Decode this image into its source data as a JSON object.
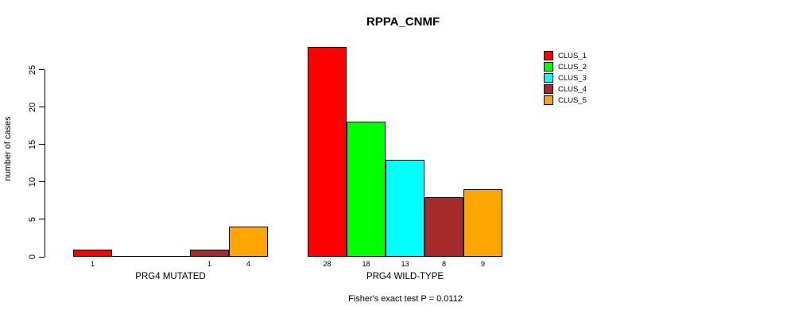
{
  "chart_data": {
    "type": "bar",
    "title": "RPPA_CNMF",
    "xlabel": "",
    "ylabel": "number of cases",
    "ylim": [
      0,
      28
    ],
    "yticks": [
      0,
      5,
      10,
      15,
      20,
      25
    ],
    "grid": false,
    "legend_position": "top-right",
    "bar_value_labels": true,
    "categories": [
      "PRG4 MUTATED",
      "PRG4 WILD-TYPE"
    ],
    "series": [
      {
        "name": "CLUS_1",
        "color": "#FF0000",
        "values": [
          1,
          28
        ]
      },
      {
        "name": "CLUS_2",
        "color": "#00FF00",
        "values": [
          0,
          18
        ]
      },
      {
        "name": "CLUS_3",
        "color": "#00FFFF",
        "values": [
          0,
          13
        ]
      },
      {
        "name": "CLUS_4",
        "color": "#A52A2A",
        "values": [
          1,
          8
        ]
      },
      {
        "name": "CLUS_5",
        "color": "#FFA500",
        "values": [
          4,
          9
        ]
      }
    ],
    "annotation": "Fisher's exact test P = 0.0112"
  }
}
